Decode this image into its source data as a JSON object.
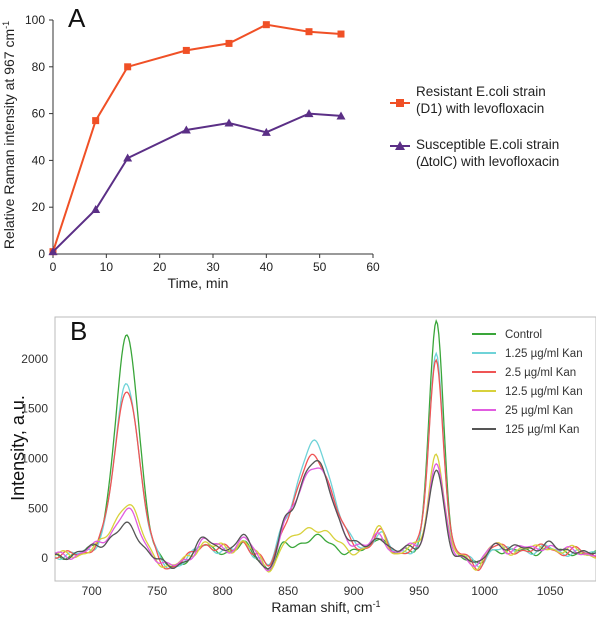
{
  "chart_data": [
    {
      "panel_label": "A",
      "type": "line",
      "xlabel": "Time, min",
      "ylabel": "Relative Raman intensity at 967 cm",
      "ylabel_sup": "-1",
      "xlim": [
        0,
        60
      ],
      "ylim": [
        0,
        100
      ],
      "x_ticks": [
        "0",
        "10",
        "20",
        "30",
        "40",
        "50",
        "60"
      ],
      "y_ticks": [
        "0",
        "20",
        "40",
        "60",
        "80",
        "100"
      ],
      "series": [
        {
          "name_lines": [
            "Resistant E.coli strain",
            "(D1) with levofloxacin"
          ],
          "color": "#f05026",
          "marker": "square",
          "x": [
            0,
            8,
            14,
            25,
            33,
            40,
            48,
            54
          ],
          "y": [
            1,
            57,
            80,
            87,
            90,
            98,
            95,
            94
          ]
        },
        {
          "name_lines": [
            "Susceptible E.coli strain",
            "(∆tolC) with levofloxacin"
          ],
          "color": "#5b2f86",
          "marker": "triangle",
          "x": [
            0,
            8,
            14,
            25,
            33,
            40,
            48,
            54
          ],
          "y": [
            1,
            19,
            41,
            53,
            56,
            52,
            60,
            59
          ]
        }
      ]
    },
    {
      "panel_label": "B",
      "type": "line",
      "xlabel": "Raman shift, cm",
      "xlabel_sup": "-1",
      "ylabel": "Intensity, a.u.",
      "xlim": [
        672,
        1085
      ],
      "ylim": [
        -230,
        2420
      ],
      "x_ticks": [
        "700",
        "750",
        "800",
        "850",
        "900",
        "950",
        "1000",
        "1050"
      ],
      "y_ticks": [
        "0",
        "500",
        "1000",
        "1500",
        "2000"
      ],
      "series": [
        {
          "name": "Control",
          "color": "#3aa63a",
          "peaks": {
            "p727": 2170,
            "p870": 170,
            "p963": 2320,
            "p920": 200
          }
        },
        {
          "name": "1.25 µg/ml Kan",
          "color": "#6fd3d8",
          "peaks": {
            "p727": 1720,
            "p870": 1110,
            "p963": 1990,
            "p920": 230
          }
        },
        {
          "name": "2.5 µg/ml Kan",
          "color": "#ef5555",
          "peaks": {
            "p727": 1680,
            "p870": 990,
            "p963": 1960,
            "p920": 220
          }
        },
        {
          "name": "12.5 µg/ml Kan",
          "color": "#d8d13c",
          "peaks": {
            "p727": 520,
            "p870": 280,
            "p963": 1040,
            "p920": 250
          }
        },
        {
          "name": "25 µg/ml Kan",
          "color": "#e15ce0",
          "peaks": {
            "p727": 440,
            "p870": 900,
            "p963": 930,
            "p920": 210
          }
        },
        {
          "name": "125 µg/ml Kan",
          "color": "#555555",
          "peaks": {
            "p727": 290,
            "p870": 930,
            "p963": 840,
            "p920": 190
          }
        }
      ]
    }
  ]
}
